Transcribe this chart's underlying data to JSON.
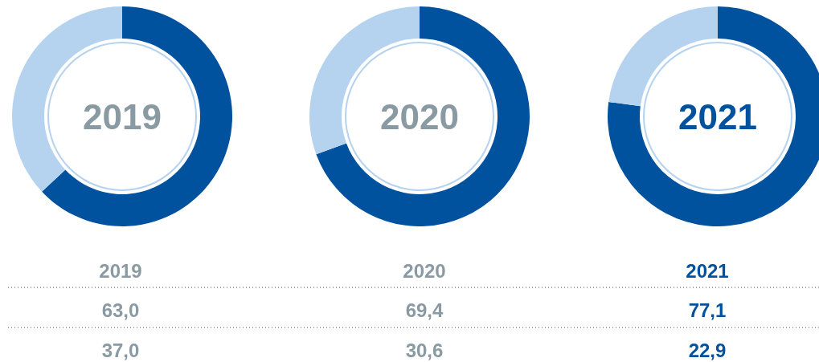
{
  "chart_data": [
    {
      "type": "donut",
      "title": "2019",
      "categories": [
        null,
        null
      ],
      "values": [
        63.0,
        37.0
      ],
      "colors": [
        "#00519e",
        "#b5d2ee"
      ],
      "annotations": [
        "2019",
        "63,0",
        "37,0"
      ]
    },
    {
      "type": "donut",
      "title": "2020",
      "categories": [
        null,
        null
      ],
      "values": [
        69.4,
        30.6
      ],
      "colors": [
        "#00519e",
        "#b5d2ee"
      ],
      "annotations": [
        "2020",
        "69,4",
        "30,6"
      ]
    },
    {
      "type": "donut",
      "title": "2021",
      "categories": [
        null,
        null
      ],
      "values": [
        77.1,
        22.9
      ],
      "colors": [
        "#00519e",
        "#b5d2ee"
      ],
      "annotations": [
        "2021",
        "77,1",
        "22,9"
      ]
    }
  ]
}
